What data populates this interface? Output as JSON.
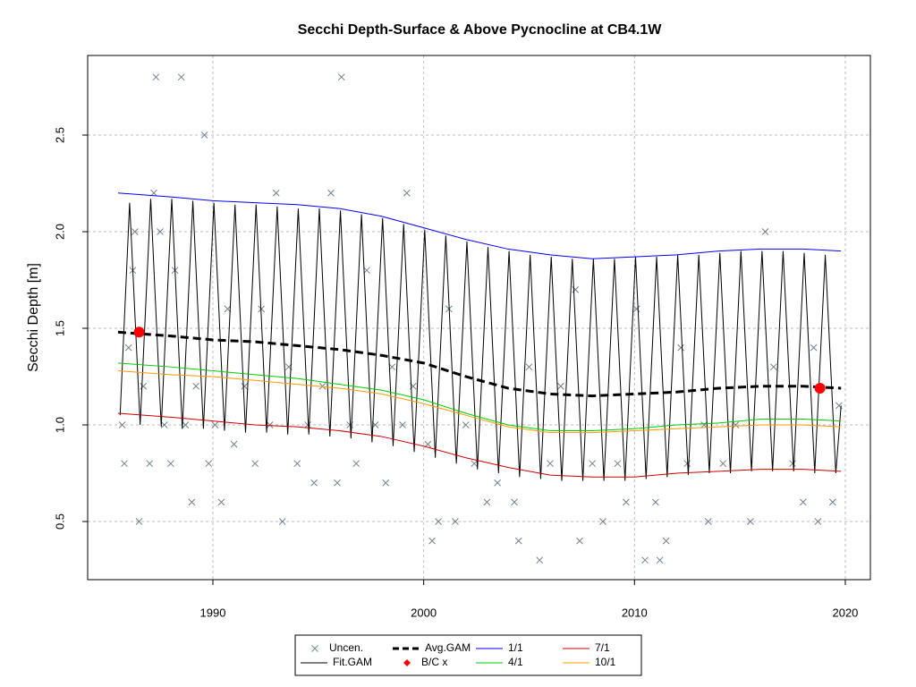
{
  "chart_data": {
    "type": "line",
    "title": "Secchi Depth-Surface & Above Pycnocline at CB4.1W",
    "y_label": "Secchi Depth [m]",
    "xlim": [
      1984.06,
      2021.19
    ],
    "ylim": [
      0.199,
      2.912
    ],
    "xticks": [
      1990,
      2000,
      2010,
      2020
    ],
    "yticks": [
      0.5,
      {
        "value": 1,
        "label": "1.0"
      },
      1.5,
      {
        "value": 2,
        "label": "2.0"
      },
      2.5
    ],
    "grid": true,
    "legend": "bottom",
    "series": [
      {
        "name": "Uncen.",
        "color": "#708090",
        "mark": "cross",
        "x": [
          1985.7,
          1985.8,
          1986,
          1986.2,
          1986.3,
          1986.5,
          1986.7,
          1987,
          1987.2,
          1987.3,
          1987.5,
          1987.7,
          1988,
          1988.2,
          1988.5,
          1988.7,
          1989,
          1989.2,
          1989.6,
          1989.8,
          1990.1,
          1990.4,
          1990.7,
          1991,
          1991.5,
          1992,
          1992.3,
          1992.7,
          1993,
          1993.3,
          1993.6,
          1994,
          1994.5,
          1994.8,
          1995.2,
          1995.6,
          1995.9,
          1996.1,
          1996.5,
          1996.8,
          1997.3,
          1997.7,
          1998.2,
          1998.5,
          1999,
          1999.2,
          1999.5,
          2000.2,
          2000.4,
          2000.7,
          2001.2,
          2001.5,
          2002,
          2002.4,
          2003,
          2003.5,
          2004.3,
          2004.5,
          2005,
          2005.5,
          2006,
          2006.5,
          2007.2,
          2007.4,
          2008,
          2008.5,
          2009.2,
          2009.6,
          2010.1,
          2010.5,
          2011,
          2011.2,
          2011.5,
          2012.2,
          2012.5,
          2013.3,
          2013.5,
          2014.2,
          2014.8,
          2015.5,
          2016.2,
          2016.6,
          2017.5,
          2018,
          2018.5,
          2018.7,
          2019.4,
          2019.7
        ],
        "values": [
          1.0,
          0.8,
          1.4,
          1.8,
          2.0,
          0.5,
          1.2,
          0.8,
          2.2,
          2.8,
          2.0,
          1.0,
          0.8,
          1.8,
          2.8,
          1.0,
          0.6,
          1.2,
          2.5,
          0.8,
          1.0,
          0.6,
          1.6,
          0.9,
          1.2,
          0.8,
          1.6,
          1.0,
          2.2,
          0.5,
          1.3,
          0.8,
          1.0,
          0.7,
          1.2,
          2.2,
          0.7,
          2.8,
          1.0,
          0.8,
          1.8,
          1.0,
          0.7,
          1.3,
          1.0,
          2.2,
          1.2,
          0.9,
          0.4,
          0.5,
          1.6,
          0.5,
          1.0,
          0.8,
          0.6,
          0.7,
          0.6,
          0.4,
          1.3,
          0.3,
          0.8,
          1.2,
          1.7,
          0.4,
          0.8,
          0.5,
          0.8,
          0.6,
          1.6,
          0.3,
          0.6,
          0.3,
          0.4,
          1.4,
          0.8,
          1.0,
          0.5,
          0.8,
          1.0,
          0.5,
          2.0,
          1.3,
          0.8,
          0.6,
          1.4,
          0.5,
          0.6,
          1.1
        ]
      },
      {
        "name": "Fit.GAM",
        "color": "#000000",
        "mark": "line",
        "x": [
          1985.6,
          1986.05,
          1986.55,
          1987.05,
          1987.55,
          1988.05,
          1988.55,
          1989.05,
          1989.55,
          1990.05,
          1990.55,
          1991.05,
          1991.55,
          1992.05,
          1992.55,
          1993.05,
          1993.55,
          1994.05,
          1994.55,
          1995.05,
          1995.55,
          1996.05,
          1996.55,
          1997.05,
          1997.55,
          1998.05,
          1998.55,
          1999.05,
          1999.55,
          2000.05,
          2000.55,
          2001.05,
          2001.55,
          2002.05,
          2002.55,
          2003.05,
          2003.55,
          2004.05,
          2004.55,
          2005.05,
          2005.55,
          2006.05,
          2006.55,
          2007.05,
          2007.55,
          2008.05,
          2008.55,
          2009.05,
          2009.55,
          2010.05,
          2010.55,
          2011.05,
          2011.55,
          2012.05,
          2012.55,
          2013.05,
          2013.55,
          2014.05,
          2014.55,
          2015.05,
          2015.55,
          2016.05,
          2016.55,
          2017.05,
          2017.55,
          2018.05,
          2018.55,
          2019.05,
          2019.55,
          2019.8
        ],
        "values": [
          1.05,
          2.15,
          1.0,
          2.17,
          0.99,
          2.17,
          0.98,
          2.16,
          0.98,
          2.15,
          0.97,
          2.14,
          0.96,
          2.14,
          0.96,
          2.13,
          0.95,
          2.12,
          0.95,
          2.12,
          0.94,
          2.11,
          0.93,
          2.09,
          0.91,
          2.07,
          0.89,
          2.04,
          0.86,
          2.01,
          0.83,
          1.98,
          0.8,
          1.95,
          0.77,
          1.92,
          0.75,
          1.9,
          0.73,
          1.88,
          0.72,
          1.87,
          0.71,
          1.86,
          0.71,
          1.86,
          0.71,
          1.86,
          0.71,
          1.87,
          0.72,
          1.87,
          0.73,
          1.88,
          0.74,
          1.88,
          0.75,
          1.89,
          0.75,
          1.9,
          0.76,
          1.9,
          0.76,
          1.9,
          0.76,
          1.89,
          0.75,
          1.88,
          0.75,
          1.1
        ]
      },
      {
        "name": "Avg.GAM",
        "color": "#000000",
        "mark": "dashed",
        "x": [
          1985.5,
          1988,
          1990,
          1992,
          1994,
          1996,
          1998,
          2000,
          2002,
          2004,
          2006,
          2008,
          2010,
          2012,
          2014,
          2016,
          2018,
          2019.8
        ],
        "values": [
          1.48,
          1.46,
          1.44,
          1.43,
          1.41,
          1.39,
          1.36,
          1.32,
          1.25,
          1.19,
          1.16,
          1.15,
          1.16,
          1.17,
          1.19,
          1.2,
          1.2,
          1.19
        ]
      },
      {
        "name": "B/C x",
        "color": "#ff0000",
        "mark": "dot",
        "x": [
          1986.5,
          2018.8
        ],
        "values": [
          1.48,
          1.19
        ]
      },
      {
        "name": "1/1",
        "color": "#0000ff",
        "mark": "line",
        "x": [
          1985.5,
          1988,
          1990,
          1992,
          1994,
          1996,
          1998,
          2000,
          2002,
          2004,
          2006,
          2008,
          2010,
          2012,
          2014,
          2016,
          2018,
          2019.8
        ],
        "values": [
          2.2,
          2.18,
          2.16,
          2.15,
          2.14,
          2.12,
          2.08,
          2.02,
          1.96,
          1.91,
          1.88,
          1.86,
          1.87,
          1.88,
          1.9,
          1.91,
          1.91,
          1.9
        ]
      },
      {
        "name": "4/1",
        "color": "#00cc00",
        "mark": "line",
        "x": [
          1985.5,
          1988,
          1990,
          1992,
          1994,
          1996,
          1998,
          2000,
          2002,
          2004,
          2006,
          2008,
          2010,
          2012,
          2014,
          2016,
          2018,
          2019.8
        ],
        "values": [
          1.32,
          1.3,
          1.28,
          1.26,
          1.24,
          1.21,
          1.18,
          1.13,
          1.06,
          1.0,
          0.97,
          0.97,
          0.98,
          1.0,
          1.01,
          1.03,
          1.03,
          1.02
        ]
      },
      {
        "name": "7/1",
        "color": "#cc0000",
        "mark": "line",
        "x": [
          1985.5,
          1988,
          1990,
          1992,
          1994,
          1996,
          1998,
          2000,
          2002,
          2004,
          2006,
          2008,
          2010,
          2012,
          2014,
          2016,
          2018,
          2019.8
        ],
        "values": [
          1.06,
          1.04,
          1.02,
          1.0,
          0.99,
          0.97,
          0.94,
          0.89,
          0.83,
          0.78,
          0.74,
          0.73,
          0.73,
          0.75,
          0.76,
          0.77,
          0.77,
          0.76
        ]
      },
      {
        "name": "10/1",
        "color": "#ff9900",
        "mark": "line",
        "x": [
          1985.5,
          1988,
          1990,
          1992,
          1994,
          1996,
          1998,
          2000,
          2002,
          2004,
          2006,
          2008,
          2010,
          2012,
          2014,
          2016,
          2018,
          2019.8
        ],
        "values": [
          1.28,
          1.26,
          1.25,
          1.23,
          1.21,
          1.19,
          1.16,
          1.11,
          1.05,
          0.99,
          0.96,
          0.96,
          0.97,
          0.98,
          0.99,
          1.0,
          1.0,
          0.99
        ]
      }
    ]
  }
}
